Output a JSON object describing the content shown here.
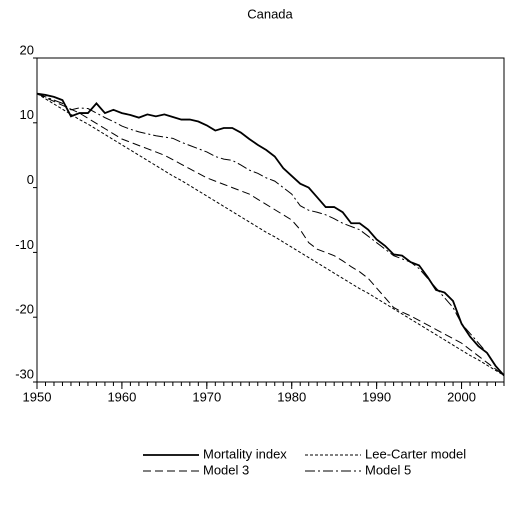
{
  "chart_data": {
    "type": "line",
    "title": "Canada",
    "x": [
      1950,
      1951,
      1952,
      1953,
      1954,
      1955,
      1956,
      1957,
      1958,
      1959,
      1960,
      1961,
      1962,
      1963,
      1964,
      1965,
      1966,
      1967,
      1968,
      1969,
      1970,
      1971,
      1972,
      1973,
      1974,
      1975,
      1976,
      1977,
      1978,
      1979,
      1980,
      1981,
      1982,
      1983,
      1984,
      1985,
      1986,
      1987,
      1988,
      1989,
      1990,
      1991,
      1992,
      1993,
      1994,
      1995,
      1996,
      1997,
      1998,
      1999,
      2000,
      2001,
      2002,
      2003,
      2004,
      2005
    ],
    "xlim": [
      1950,
      2005
    ],
    "xticks": [
      1950,
      1960,
      1970,
      1980,
      1990,
      2000
    ],
    "ylim": [
      -30,
      20
    ],
    "yticks": [
      -30,
      -20,
      -10,
      0,
      10,
      20
    ],
    "series": [
      {
        "name": "Mortality index",
        "color": "#000000",
        "dash": "solid",
        "values": [
          14.5,
          14.3,
          14,
          13.5,
          11,
          11.5,
          11.5,
          13,
          11.5,
          12,
          11.5,
          11.2,
          10.8,
          11.3,
          11,
          11.3,
          10.9,
          10.5,
          10.5,
          10.2,
          9.6,
          8.8,
          9.2,
          9.2,
          8.5,
          7.5,
          6.6,
          5.8,
          4.8,
          3,
          1.8,
          0.6,
          0,
          -1.5,
          -3,
          -3,
          -3.8,
          -5.5,
          -5.5,
          -6.5,
          -8,
          -9,
          -10.3,
          -10.5,
          -11.5,
          -12,
          -13.8,
          -15.8,
          -16.2,
          -17.5,
          -21,
          -23,
          -24.5,
          -25.5,
          -27.5,
          -29
        ]
      },
      {
        "name": "Lee-Carter model",
        "color": "#000000",
        "dash": "short-dash",
        "values": [
          14.5,
          13.7,
          12.9,
          12.1,
          11.3,
          10.5,
          9.8,
          9,
          8.2,
          7.4,
          6.6,
          5.8,
          5,
          4.2,
          3.4,
          2.6,
          1.8,
          1.1,
          0.3,
          -0.5,
          -1.3,
          -2.1,
          -2.9,
          -3.7,
          -4.5,
          -5.3,
          -6.1,
          -6.9,
          -7.6,
          -8.4,
          -9.2,
          -10,
          -10.8,
          -11.6,
          -12.4,
          -13.2,
          -14,
          -14.8,
          -15.6,
          -16.3,
          -17.1,
          -17.9,
          -18.7,
          -19.5,
          -20.3,
          -21.1,
          -21.9,
          -22.7,
          -23.5,
          -24.3,
          -25.1,
          -25.9,
          -26.6,
          -27.4,
          -28.2,
          -29
        ]
      },
      {
        "name": "Model 3",
        "color": "#000000",
        "dash": "long-dash",
        "values": [
          14.5,
          13.9,
          13.3,
          12.7,
          12.1,
          11.5,
          10.7,
          9.9,
          9.1,
          8.3,
          7.5,
          7,
          6.5,
          6,
          5.5,
          5,
          4.3,
          3.6,
          2.9,
          2.2,
          1.5,
          1,
          0.5,
          0,
          -0.5,
          -1,
          -1.8,
          -2.6,
          -3.4,
          -4.2,
          -5,
          -6.5,
          -8.5,
          -9.5,
          -10,
          -10.5,
          -11.3,
          -12.2,
          -13,
          -14,
          -15.5,
          -17,
          -18.5,
          -19.2,
          -19.8,
          -20.5,
          -21.2,
          -21.9,
          -22.6,
          -23.3,
          -24,
          -25,
          -26,
          -27,
          -28,
          -29
        ]
      },
      {
        "name": "Model 5",
        "color": "#000000",
        "dash": "dash-dot",
        "values": [
          14.5,
          14,
          13.5,
          13,
          12,
          12.3,
          12.2,
          11.5,
          10.8,
          10.2,
          9.5,
          9,
          8.6,
          8.3,
          8,
          7.8,
          7.6,
          7,
          6.5,
          6,
          5.5,
          4.8,
          4.4,
          4.2,
          3.5,
          2.7,
          2.2,
          1.5,
          1,
          0,
          -1,
          -2.8,
          -3.5,
          -3.8,
          -4.2,
          -4.8,
          -5.5,
          -6,
          -6.5,
          -7.5,
          -8.5,
          -9.5,
          -10.5,
          -11,
          -11.5,
          -12.5,
          -14,
          -15.5,
          -17,
          -18.5,
          -21,
          -22.5,
          -24,
          -25.5,
          -27.5,
          -29
        ]
      }
    ]
  }
}
